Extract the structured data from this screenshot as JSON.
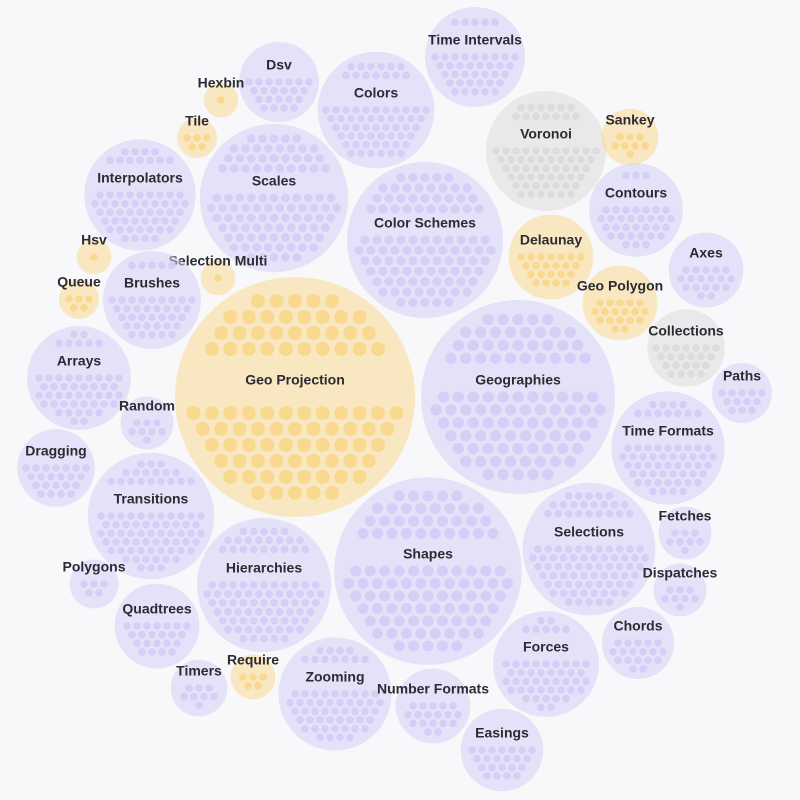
{
  "chart_data": {
    "type": "pack",
    "categories": [
      "Time Intervals",
      "Dsv",
      "Colors",
      "Hexbin",
      "Tile",
      "Voronoi",
      "Sankey",
      "Interpolators",
      "Scales",
      "Color Schemes",
      "Contours",
      "Delaunay",
      "Axes",
      "Hsv",
      "Selection Multi",
      "Queue",
      "Brushes",
      "Geo Polygon",
      "Collections",
      "Arrays",
      "Geo Projection",
      "Geographies",
      "Paths",
      "Random",
      "Time Formats",
      "Dragging",
      "Transitions",
      "Shapes",
      "Selections",
      "Fetches",
      "Hierarchies",
      "Polygons",
      "Dispatches",
      "Quadtrees",
      "Chords",
      "Forces",
      "Timers",
      "Require",
      "Zooming",
      "Number Formats",
      "Easings"
    ],
    "values": [
      25,
      16,
      34,
      3,
      4,
      36,
      8,
      31,
      55,
      61,
      22,
      18,
      14,
      3,
      3,
      4,
      24,
      14,
      15,
      27,
      144,
      94,
      9,
      7,
      32,
      15,
      40,
      88,
      44,
      7,
      45,
      6,
      7,
      18,
      13,
      28,
      8,
      5,
      32,
      14,
      17
    ],
    "colors": [
      "#d4cff6",
      "#d4cff6",
      "#d4cff6",
      "#f8d98f",
      "#f8d98f",
      "#dcdcdc",
      "#f8d98f",
      "#d4cff6",
      "#d4cff6",
      "#d4cff6",
      "#d4cff6",
      "#f8d98f",
      "#d4cff6",
      "#f8d98f",
      "#f8d98f",
      "#f8d98f",
      "#d4cff6",
      "#f8d98f",
      "#dcdcdc",
      "#d4cff6",
      "#f8d98f",
      "#d4cff6",
      "#d4cff6",
      "#d4cff6",
      "#d4cff6",
      "#d4cff6",
      "#d4cff6",
      "#d4cff6",
      "#d4cff6",
      "#d4cff6",
      "#d4cff6",
      "#d4cff6",
      "#d4cff6",
      "#d4cff6",
      "#d4cff6",
      "#d4cff6",
      "#d4cff6",
      "#f8d98f",
      "#d4cff6",
      "#d4cff6",
      "#d4cff6"
    ]
  }
}
